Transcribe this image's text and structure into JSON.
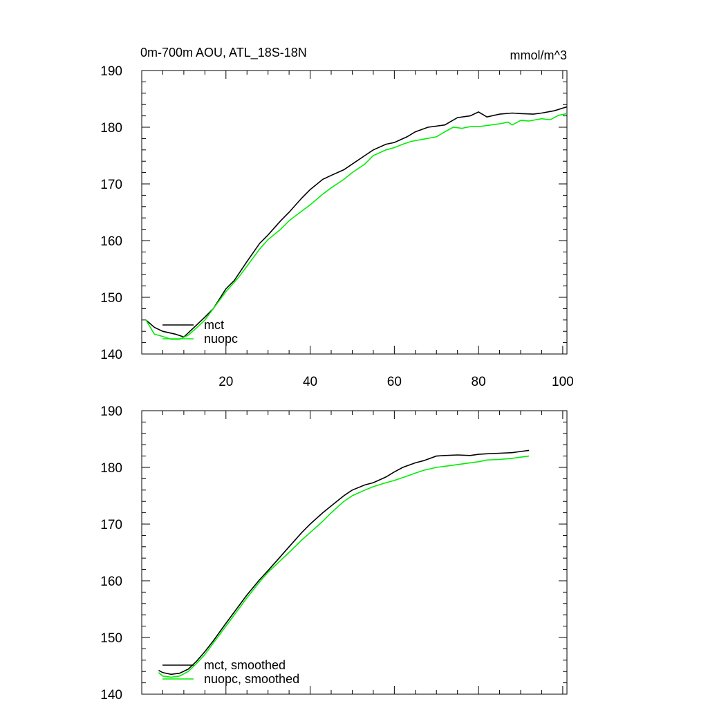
{
  "chart_data": [
    {
      "type": "line",
      "title": "0m-700m AOU, ATL_18S-18N",
      "units": "mmol/m^3",
      "xlabel": "",
      "ylabel": "",
      "xlim": [
        0,
        101
      ],
      "ylim": [
        140,
        190
      ],
      "x_ticks": [
        20,
        40,
        60,
        80,
        100
      ],
      "y_ticks": [
        140,
        150,
        160,
        170,
        180,
        190
      ],
      "legend_position": "bottom-left",
      "series": [
        {
          "name": "mct",
          "color": "#000000",
          "points": [
            [
              1,
              146
            ],
            [
              3,
              144.7
            ],
            [
              5,
              144
            ],
            [
              8,
              143.5
            ],
            [
              10,
              143
            ],
            [
              12,
              144.4
            ],
            [
              15,
              146.5
            ],
            [
              17,
              148
            ],
            [
              20,
              151.5
            ],
            [
              22,
              153
            ],
            [
              25,
              156.3
            ],
            [
              28,
              159.5
            ],
            [
              30,
              161
            ],
            [
              33,
              163.5
            ],
            [
              35,
              165
            ],
            [
              38,
              167.5
            ],
            [
              40,
              169
            ],
            [
              43,
              170.8
            ],
            [
              45,
              171.5
            ],
            [
              48,
              172.5
            ],
            [
              50,
              173.5
            ],
            [
              53,
              175
            ],
            [
              55,
              176
            ],
            [
              58,
              177
            ],
            [
              60,
              177.3
            ],
            [
              63,
              178.3
            ],
            [
              65,
              179.2
            ],
            [
              68,
              180
            ],
            [
              70,
              180.2
            ],
            [
              72,
              180.4
            ],
            [
              75,
              181.7
            ],
            [
              78,
              182
            ],
            [
              80,
              182.7
            ],
            [
              82,
              181.8
            ],
            [
              85,
              182.3
            ],
            [
              88,
              182.5
            ],
            [
              90,
              182.4
            ],
            [
              93,
              182.3
            ],
            [
              95,
              182.5
            ],
            [
              98,
              182.9
            ],
            [
              101,
              183.6
            ]
          ]
        },
        {
          "name": "nuopc",
          "color": "#00ee00",
          "points": [
            [
              1,
              146
            ],
            [
              3,
              143.5
            ],
            [
              5,
              143.1
            ],
            [
              7,
              142.6
            ],
            [
              9,
              142.6
            ],
            [
              11,
              143.3
            ],
            [
              13,
              144.6
            ],
            [
              15,
              146
            ],
            [
              18,
              149
            ],
            [
              20,
              151
            ],
            [
              23,
              153.5
            ],
            [
              25,
              155.5
            ],
            [
              28,
              158.5
            ],
            [
              30,
              160.2
            ],
            [
              33,
              162
            ],
            [
              35,
              163.5
            ],
            [
              38,
              165.2
            ],
            [
              40,
              166.3
            ],
            [
              43,
              168.2
            ],
            [
              45,
              169.3
            ],
            [
              48,
              170.8
            ],
            [
              50,
              172
            ],
            [
              53,
              173.5
            ],
            [
              55,
              175
            ],
            [
              58,
              176
            ],
            [
              60,
              176.4
            ],
            [
              62,
              177
            ],
            [
              64,
              177.5
            ],
            [
              67,
              177.9
            ],
            [
              70,
              178.3
            ],
            [
              72,
              179.2
            ],
            [
              74,
              180
            ],
            [
              76,
              179.8
            ],
            [
              78,
              180.1
            ],
            [
              80,
              180.1
            ],
            [
              82,
              180.3
            ],
            [
              85,
              180.6
            ],
            [
              87,
              180.9
            ],
            [
              88,
              180.4
            ],
            [
              90,
              181.2
            ],
            [
              92,
              181.1
            ],
            [
              95,
              181.5
            ],
            [
              97,
              181.3
            ],
            [
              99,
              182.1
            ],
            [
              101,
              182.4
            ]
          ]
        }
      ]
    },
    {
      "type": "line",
      "title": "",
      "xlabel": "",
      "ylabel": "",
      "xlim": [
        0,
        101
      ],
      "ylim": [
        140,
        190
      ],
      "x_ticks": [
        20,
        40,
        60,
        80,
        100
      ],
      "y_ticks": [
        140,
        150,
        160,
        170,
        180,
        190
      ],
      "legend_position": "bottom-left",
      "series": [
        {
          "name": "mct, smoothed",
          "color": "#000000",
          "points": [
            [
              4,
              144.2
            ],
            [
              5,
              143.8
            ],
            [
              7,
              143.5
            ],
            [
              9,
              143.7
            ],
            [
              11,
              144.4
            ],
            [
              13,
              145.8
            ],
            [
              15,
              147.5
            ],
            [
              17,
              149.4
            ],
            [
              20,
              152.5
            ],
            [
              23,
              155.5
            ],
            [
              25,
              157.5
            ],
            [
              28,
              160.2
            ],
            [
              30,
              161.8
            ],
            [
              33,
              164.3
            ],
            [
              35,
              166
            ],
            [
              38,
              168.5
            ],
            [
              40,
              170
            ],
            [
              43,
              172
            ],
            [
              45,
              173.2
            ],
            [
              48,
              175
            ],
            [
              50,
              176
            ],
            [
              53,
              176.9
            ],
            [
              55,
              177.3
            ],
            [
              58,
              178.3
            ],
            [
              60,
              179.2
            ],
            [
              62,
              180
            ],
            [
              65,
              180.8
            ],
            [
              67,
              181.2
            ],
            [
              70,
              182
            ],
            [
              72,
              182.1
            ],
            [
              75,
              182.2
            ],
            [
              78,
              182.1
            ],
            [
              80,
              182.3
            ],
            [
              82,
              182.4
            ],
            [
              85,
              182.5
            ],
            [
              88,
              182.6
            ],
            [
              90,
              182.8
            ],
            [
              92,
              183
            ]
          ]
        },
        {
          "name": "nuopc, smoothed",
          "color": "#00ee00",
          "points": [
            [
              4,
              143.8
            ],
            [
              5,
              143.2
            ],
            [
              7,
              143
            ],
            [
              9,
              143.2
            ],
            [
              11,
              144
            ],
            [
              13,
              145.4
            ],
            [
              15,
              147
            ],
            [
              17,
              149
            ],
            [
              20,
              152
            ],
            [
              23,
              155
            ],
            [
              25,
              157
            ],
            [
              28,
              159.8
            ],
            [
              30,
              161.5
            ],
            [
              33,
              163.6
            ],
            [
              35,
              165
            ],
            [
              38,
              167.2
            ],
            [
              40,
              168.5
            ],
            [
              43,
              170.5
            ],
            [
              45,
              172
            ],
            [
              48,
              174
            ],
            [
              50,
              175
            ],
            [
              53,
              176
            ],
            [
              55,
              176.6
            ],
            [
              58,
              177.3
            ],
            [
              60,
              177.7
            ],
            [
              62,
              178.2
            ],
            [
              65,
              179
            ],
            [
              67,
              179.5
            ],
            [
              70,
              180
            ],
            [
              72,
              180.2
            ],
            [
              75,
              180.5
            ],
            [
              78,
              180.8
            ],
            [
              80,
              181
            ],
            [
              82,
              181.3
            ],
            [
              85,
              181.4
            ],
            [
              88,
              181.6
            ],
            [
              90,
              181.8
            ],
            [
              92,
              182
            ]
          ]
        }
      ]
    }
  ]
}
